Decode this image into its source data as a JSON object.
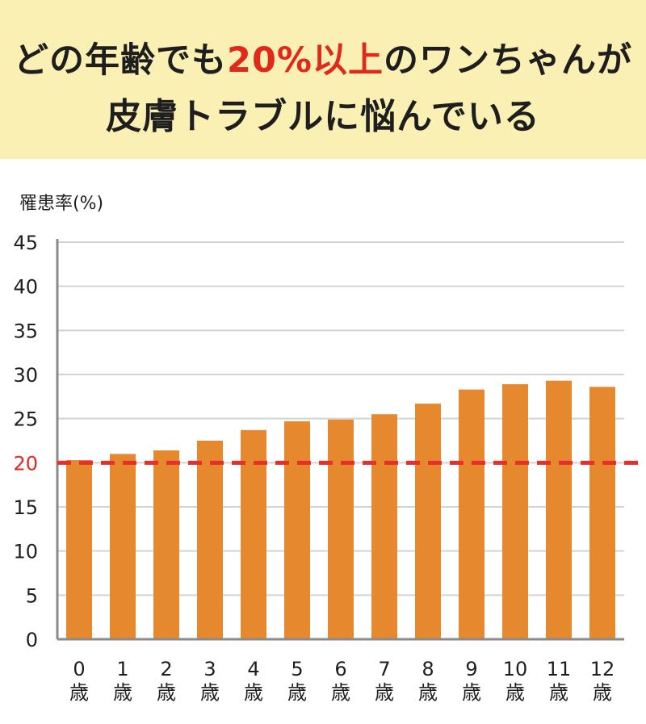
{
  "header": {
    "line1_before": "どの年齢でも",
    "line1_highlight": "20%以上",
    "line1_after": "のワンちゃんが",
    "line2": "皮膚トラブルに悩んでいる"
  },
  "colors": {
    "banner": "#fbf0b4",
    "bar": "#e6892e",
    "reference_line": "#e5312a",
    "highlight_text": "#e0291b",
    "grid": "#d3d3d3"
  },
  "chart_data": {
    "type": "bar",
    "ylabel": "罹患率(%)",
    "ylim": [
      0,
      45
    ],
    "yticks": [
      0,
      5,
      10,
      15,
      20,
      25,
      30,
      35,
      40,
      45
    ],
    "highlight_tick": 20,
    "grid": true,
    "categories": [
      {
        "num": "0",
        "unit": "歳"
      },
      {
        "num": "1",
        "unit": "歳"
      },
      {
        "num": "2",
        "unit": "歳"
      },
      {
        "num": "3",
        "unit": "歳"
      },
      {
        "num": "4",
        "unit": "歳"
      },
      {
        "num": "5",
        "unit": "歳"
      },
      {
        "num": "6",
        "unit": "歳"
      },
      {
        "num": "7",
        "unit": "歳"
      },
      {
        "num": "8",
        "unit": "歳"
      },
      {
        "num": "9",
        "unit": "歳"
      },
      {
        "num": "10",
        "unit": "歳"
      },
      {
        "num": "11",
        "unit": "歳"
      },
      {
        "num": "12",
        "unit": "歳"
      }
    ],
    "values": [
      20.3,
      21.0,
      21.4,
      22.5,
      23.7,
      24.7,
      24.9,
      25.5,
      26.7,
      28.3,
      28.9,
      29.3,
      28.6
    ],
    "reference_line": {
      "value": 20,
      "style": "dashed"
    }
  }
}
